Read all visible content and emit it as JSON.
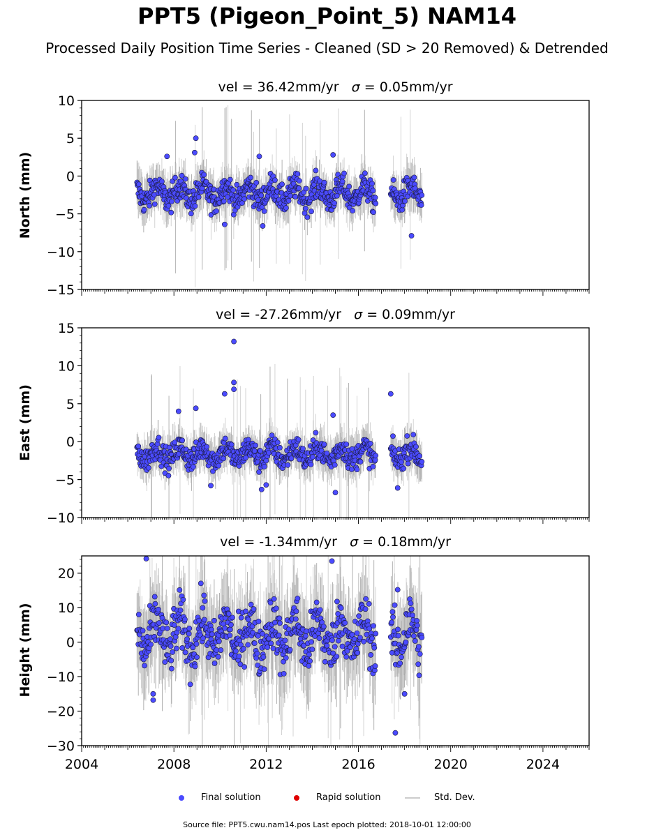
{
  "page": {
    "title": "PPT5 (Pigeon_Point_5) NAM14",
    "subtitle": "Processed Daily Position Time Series - Cleaned (SD > 20 Removed) & Detrended",
    "footer": "Source file: PPT5.cwu.nam14.pos  Last epoch plotted: 2018-10-01 12:00:00"
  },
  "legend": {
    "final": "Final solution",
    "rapid": "Rapid solution",
    "stddev": "Std. Dev."
  },
  "colors": {
    "final": "#4b4bff",
    "rapid": "#e00000",
    "stddev": "#c8c8c8",
    "stddev_dense": "#555555"
  },
  "chart_data": [
    {
      "type": "scatter",
      "panel": "north",
      "title_prefix": "vel = 36.42mm/yr",
      "sigma_text": "σ",
      "title_suffix": "= 0.05mm/yr",
      "ylabel": "North (mm)",
      "xlim": [
        2004,
        2026
      ],
      "ylim": [
        -15,
        10
      ],
      "yticks": [
        -15,
        -10,
        -5,
        0,
        5,
        10
      ],
      "ytick_labels": [
        "−15",
        "−10",
        "−5",
        "0",
        "5",
        "10"
      ],
      "base_level": -2.3,
      "scatter_sd": 1.1,
      "outliers": [
        [
          2008.95,
          5.0
        ],
        [
          2008.9,
          3.1
        ],
        [
          2007.7,
          2.6
        ],
        [
          2011.7,
          2.6
        ],
        [
          2014.9,
          2.8
        ],
        [
          2018.3,
          -7.9
        ],
        [
          2011.85,
          -6.6
        ],
        [
          2010.2,
          -6.4
        ]
      ]
    },
    {
      "type": "scatter",
      "panel": "east",
      "title_prefix": "vel = -27.26mm/yr",
      "sigma_text": "σ",
      "title_suffix": "= 0.09mm/yr",
      "ylabel": "East (mm)",
      "xlim": [
        2004,
        2026
      ],
      "ylim": [
        -10,
        15
      ],
      "yticks": [
        -10,
        -5,
        0,
        5,
        10,
        15
      ],
      "ytick_labels": [
        "−10",
        "−5",
        "0",
        "5",
        "10",
        "15"
      ],
      "base_level": -1.6,
      "scatter_sd": 1.0,
      "outliers": [
        [
          2010.6,
          13.2
        ],
        [
          2010.6,
          7.8
        ],
        [
          2010.6,
          6.9
        ],
        [
          2010.2,
          6.3
        ],
        [
          2017.4,
          6.3
        ],
        [
          2008.95,
          4.4
        ],
        [
          2008.2,
          4.0
        ],
        [
          2014.9,
          3.5
        ],
        [
          2015.0,
          -6.7
        ],
        [
          2011.8,
          -6.3
        ],
        [
          2017.7,
          -6.1
        ],
        [
          2009.6,
          -5.8
        ],
        [
          2012.0,
          -5.7
        ]
      ]
    },
    {
      "type": "scatter",
      "panel": "height",
      "title_prefix": "vel = -1.34mm/yr",
      "sigma_text": "σ",
      "title_suffix": "= 0.18mm/yr",
      "ylabel": "Height (mm)",
      "xlim": [
        2004,
        2026
      ],
      "ylim": [
        -30,
        25
      ],
      "yticks": [
        -30,
        -20,
        -10,
        0,
        10,
        20
      ],
      "ytick_labels": [
        "−30",
        "−20",
        "−10",
        "0",
        "10",
        "20"
      ],
      "xticks": [
        2004,
        2008,
        2012,
        2016,
        2020,
        2024
      ],
      "xtick_labels": [
        "2004",
        "2008",
        "2012",
        "2016",
        "2020",
        "2024"
      ],
      "base_level": 2.0,
      "scatter_sd": 5.0,
      "outliers": [
        [
          2006.8,
          24.2
        ],
        [
          2014.85,
          23.5
        ],
        [
          2017.7,
          15.2
        ],
        [
          2007.1,
          -16.8
        ],
        [
          2007.1,
          -15.0
        ],
        [
          2017.6,
          -26.3
        ],
        [
          2018.0,
          -15.0
        ]
      ]
    }
  ],
  "data_segments": [
    [
      2006.4,
      2016.75
    ],
    [
      2017.4,
      2018.75
    ]
  ]
}
